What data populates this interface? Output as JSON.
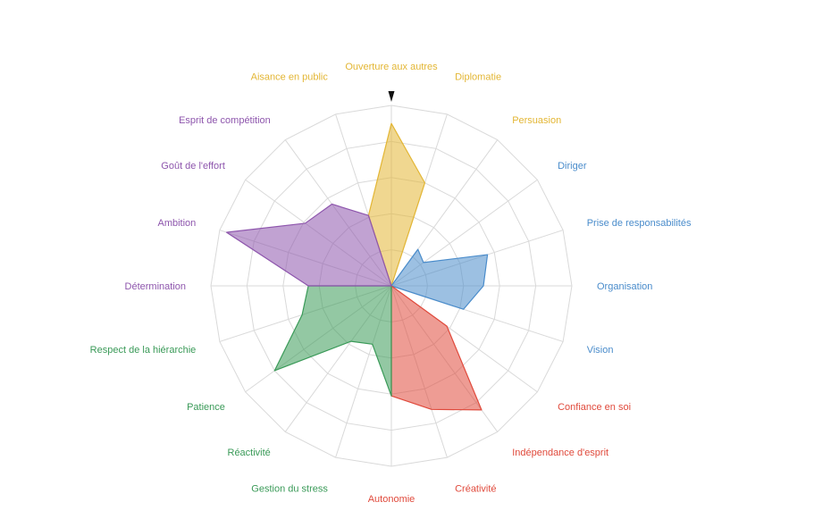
{
  "chart_data": {
    "type": "radar",
    "max": 5,
    "rings": 5,
    "colors": {
      "yellow": "#e3b634",
      "blue": "#4a8ccb",
      "red": "#e04a3c",
      "green": "#3a9a58",
      "purple": "#8e56ad",
      "grid": "#d9d9d9",
      "pointer": "#111111"
    },
    "axes": [
      {
        "label": "Ouverture aux autres",
        "group": "yellow",
        "value": 4.5
      },
      {
        "label": "Diplomatie",
        "group": "yellow",
        "value": 3.0
      },
      {
        "label": "Persuasion",
        "group": "yellow",
        "value": 1.25
      },
      {
        "label": "Diriger",
        "group": "blue",
        "value": 1.1
      },
      {
        "label": "Prise de responsabilités",
        "group": "blue",
        "value": 2.8
      },
      {
        "label": "Organisation",
        "group": "blue",
        "value": 2.55
      },
      {
        "label": "Vision",
        "group": "blue",
        "value": 2.1
      },
      {
        "label": "Confiance en soi",
        "group": "red",
        "value": 1.9
      },
      {
        "label": "Indépendance d'esprit",
        "group": "red",
        "value": 4.25
      },
      {
        "label": "Créativité",
        "group": "red",
        "value": 3.6
      },
      {
        "label": "Autonomie",
        "group": "red",
        "value": 3.05
      },
      {
        "label": "Gestion du stress",
        "group": "green",
        "value": 1.7
      },
      {
        "label": "Réactivité",
        "group": "green",
        "value": 1.9
      },
      {
        "label": "Patience",
        "group": "green",
        "value": 4.0
      },
      {
        "label": "Respect de la hiérarchie",
        "group": "green",
        "value": 2.6
      },
      {
        "label": "Détermination",
        "group": "purple",
        "value": 2.3
      },
      {
        "label": "Ambition",
        "group": "purple",
        "value": 4.8
      },
      {
        "label": "Goût de l'effort",
        "group": "purple",
        "value": 2.95
      },
      {
        "label": "Esprit de compétition",
        "group": "purple",
        "value": 2.8
      },
      {
        "label": "Aisance en public",
        "group": "yellow",
        "value": 2.05
      }
    ],
    "sectors": [
      {
        "group": "yellow",
        "from": 19,
        "to": 1
      },
      {
        "group": "blue",
        "from": 2,
        "to": 6
      },
      {
        "group": "red",
        "from": 7,
        "to": 10
      },
      {
        "group": "green",
        "from": 10,
        "to": 15
      },
      {
        "group": "purple",
        "from": 15,
        "to": 19
      }
    ]
  }
}
